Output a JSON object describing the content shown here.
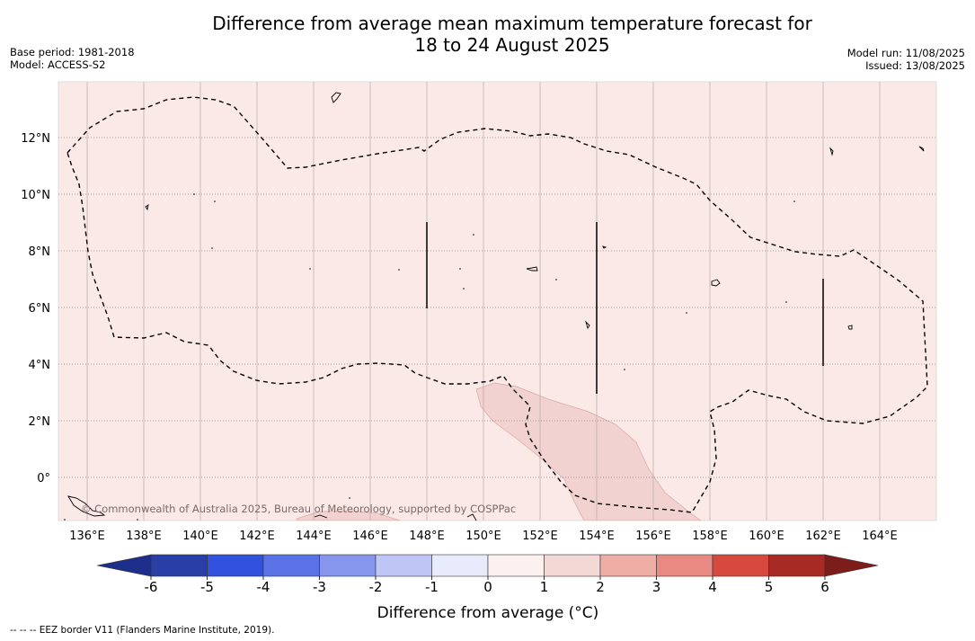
{
  "title": {
    "line1": "Difference from average mean maximum temperature forecast for",
    "line2": "18 to 24 August 2025"
  },
  "meta_left": {
    "base_period": "Base period: 1981-2018",
    "model": "Model: ACCESS-S2"
  },
  "meta_right": {
    "model_run": "Model run: 11/08/2025",
    "issued": "Issued: 13/08/2025"
  },
  "map": {
    "lon_labels": [
      "136°E",
      "138°E",
      "140°E",
      "142°E",
      "144°E",
      "146°E",
      "148°E",
      "150°E",
      "152°E",
      "154°E",
      "156°E",
      "158°E",
      "160°E",
      "162°E",
      "164°E"
    ],
    "lat_labels": [
      "12°N",
      "10°N",
      "8°N",
      "6°N",
      "4°N",
      "2°N",
      "0°"
    ],
    "copyright": "© Commonwealth of Australia 2025, Bureau of Meteorology, supported by COSPPac",
    "background_color": "#fbe9e8",
    "anomaly_patch_color": "#f2d2d0"
  },
  "colorbar": {
    "label": "Difference from average (°C)",
    "ticks": [
      "-6",
      "-5",
      "-4",
      "-3",
      "-2",
      "-1",
      "0",
      "1",
      "2",
      "3",
      "4",
      "5",
      "6"
    ],
    "colors": [
      "#2a3ea8",
      "#3152de",
      "#5a72e6",
      "#8596ec",
      "#bec6f5",
      "#e8ebfc",
      "#fdf1f0",
      "#f4d8d5",
      "#eeada5",
      "#e88a82",
      "#d7493f",
      "#a72b24"
    ],
    "under_color": "#1d2f8a",
    "over_color": "#7d1d19"
  },
  "footnote": "--  --  -- EEZ border V11 (Flanders Marine Institute, 2019)."
}
